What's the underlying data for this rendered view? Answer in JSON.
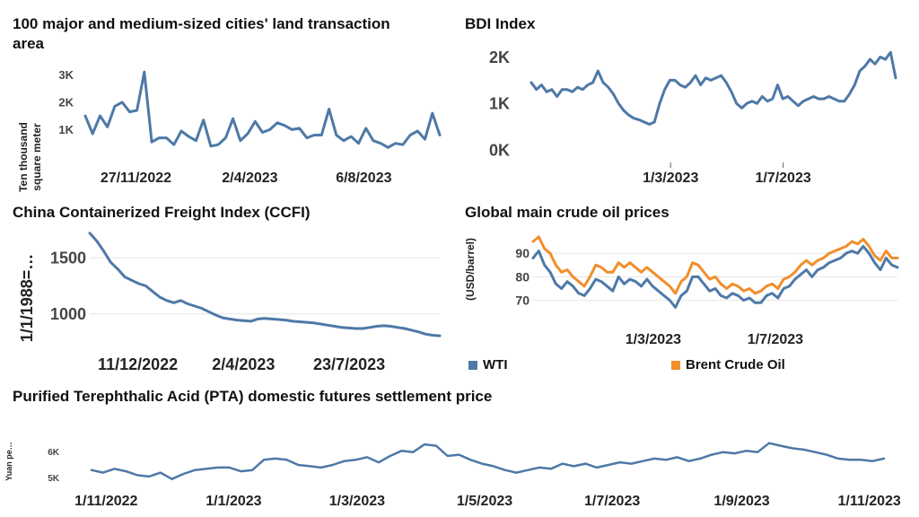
{
  "chart_data": [
    {
      "id": "land",
      "type": "line",
      "title": "100 major and medium-sized cities' land transaction area",
      "ylabel_line1": "Ten thousand",
      "ylabel_line2": "square meter",
      "ylim": [
        0,
        3500
      ],
      "yticks": [
        {
          "v": 1000,
          "label": "1K"
        },
        {
          "v": 2000,
          "label": "2K"
        },
        {
          "v": 3000,
          "label": "3K"
        }
      ],
      "x_start": "2022-10-02",
      "x_end": "2023-10-29",
      "xticks": [
        {
          "date": "2022-11-27",
          "label": "27/11/2022"
        },
        {
          "date": "2023-04-02",
          "label": "2/4/2023"
        },
        {
          "date": "2023-08-06",
          "label": "6/8/2023"
        }
      ],
      "color": "#4e79a7",
      "series": [
        {
          "values": [
            1500,
            850,
            1500,
            1100,
            1850,
            2000,
            1650,
            1700,
            3100,
            550,
            700,
            700,
            450,
            950,
            750,
            600,
            1350,
            400,
            450,
            700,
            1400,
            600,
            850,
            1300,
            900,
            1000,
            1250,
            1150,
            1000,
            1050,
            700,
            800,
            800,
            1750,
            800,
            600,
            750,
            500,
            1050,
            600,
            500,
            350,
            500,
            450,
            800,
            950,
            650,
            1600,
            800
          ]
        }
      ]
    },
    {
      "id": "bdi",
      "type": "line",
      "title": "BDI Index",
      "ylim": [
        0,
        2300
      ],
      "yticks": [
        {
          "v": 0,
          "label": "0K"
        },
        {
          "v": 1000,
          "label": "1K"
        },
        {
          "v": 2000,
          "label": "2K"
        }
      ],
      "x_start": "2022-10-01",
      "x_end": "2023-10-31",
      "xticks": [
        {
          "date": "2023-03-01",
          "label": "1/3/2023"
        },
        {
          "date": "2023-07-01",
          "label": "1/7/2023"
        }
      ],
      "color": "#4e79a7",
      "series": [
        {
          "values": [
            1450,
            1300,
            1400,
            1250,
            1300,
            1150,
            1300,
            1300,
            1250,
            1350,
            1300,
            1400,
            1450,
            1700,
            1450,
            1350,
            1200,
            1000,
            850,
            750,
            680,
            650,
            600,
            550,
            600,
            1000,
            1300,
            1500,
            1500,
            1400,
            1350,
            1450,
            1600,
            1400,
            1550,
            1500,
            1550,
            1600,
            1450,
            1250,
            1000,
            900,
            1000,
            1050,
            1000,
            1150,
            1050,
            1100,
            1400,
            1100,
            1150,
            1050,
            950,
            1050,
            1100,
            1150,
            1100,
            1100,
            1150,
            1100,
            1050,
            1050,
            1200,
            1400,
            1700,
            1800,
            1950,
            1850,
            2000,
            1950,
            2100,
            1550
          ]
        }
      ]
    },
    {
      "id": "ccfi",
      "type": "line",
      "title": "China Containerized Freight Index (CCFI)",
      "ylabel": "1/1/1988=…",
      "ylim": [
        750,
        1750
      ],
      "yticks": [
        {
          "v": 1000,
          "label": "1000"
        },
        {
          "v": 1500,
          "label": "1500"
        }
      ],
      "x_start": "2022-10-21",
      "x_end": "2023-10-27",
      "xticks": [
        {
          "date": "2022-12-11",
          "label": "11/12/2022"
        },
        {
          "date": "2023-04-02",
          "label": "2/4/2023"
        },
        {
          "date": "2023-07-23",
          "label": "23/7/2023"
        }
      ],
      "color": "#4e79a7",
      "series": [
        {
          "values": [
            1720,
            1650,
            1560,
            1460,
            1400,
            1330,
            1300,
            1270,
            1250,
            1200,
            1150,
            1120,
            1100,
            1120,
            1090,
            1070,
            1050,
            1020,
            990,
            965,
            955,
            945,
            940,
            935,
            955,
            960,
            955,
            950,
            945,
            935,
            930,
            925,
            920,
            910,
            900,
            890,
            880,
            875,
            870,
            870,
            880,
            890,
            895,
            890,
            880,
            870,
            855,
            840,
            820,
            810,
            805
          ]
        }
      ]
    },
    {
      "id": "oil",
      "type": "line",
      "title": "Global main crude oil prices",
      "ylabel": "(USD/barrel)",
      "ylim": [
        63,
        100
      ],
      "yticks": [
        {
          "v": 70,
          "label": "70"
        },
        {
          "v": 80,
          "label": "80"
        },
        {
          "v": 90,
          "label": "90"
        }
      ],
      "x_start": "2022-11-01",
      "x_end": "2023-10-31",
      "xticks": [
        {
          "date": "2023-03-01",
          "label": "1/3/2023"
        },
        {
          "date": "2023-07-01",
          "label": "1/7/2023"
        }
      ],
      "legend_position": "bottom",
      "series": [
        {
          "name": "WTI",
          "color": "#4e79a7",
          "values": [
            88,
            91,
            85,
            82,
            77,
            75,
            78,
            76,
            73,
            72,
            75,
            79,
            78,
            76,
            74,
            80,
            77,
            79,
            78,
            76,
            79,
            76,
            74,
            72,
            70,
            67,
            72,
            74,
            80,
            80,
            77,
            74,
            75,
            72,
            71,
            73,
            72,
            70,
            71,
            69,
            69,
            72,
            73,
            71,
            75,
            76,
            79,
            81,
            83,
            80,
            83,
            84,
            86,
            87,
            88,
            90,
            91,
            90,
            93,
            90,
            86,
            83,
            88,
            85,
            84
          ]
        },
        {
          "name": "Brent Crude Oil",
          "color": "#f28e2b",
          "values": [
            95,
            97,
            92,
            90,
            85,
            82,
            83,
            80,
            78,
            76,
            80,
            85,
            84,
            82,
            82,
            86,
            84,
            86,
            84,
            82,
            84,
            82,
            80,
            78,
            76,
            73,
            78,
            80,
            86,
            85,
            82,
            79,
            80,
            77,
            75,
            77,
            76,
            74,
            75,
            73,
            74,
            76,
            77,
            75,
            79,
            80,
            82,
            85,
            87,
            85,
            87,
            88,
            90,
            91,
            92,
            93,
            95,
            94,
            96,
            93,
            89,
            87,
            91,
            88,
            88
          ]
        }
      ]
    },
    {
      "id": "pta",
      "type": "line",
      "title": "Purified Terephthalic Acid (PTA) domestic futures settlement price",
      "ylabel": "Yuan pe…",
      "ylim": [
        4800,
        6900
      ],
      "yticks": [
        {
          "v": 5000,
          "label": "5K"
        },
        {
          "v": 6000,
          "label": "6K"
        }
      ],
      "x_start": "2022-10-25",
      "x_end": "2023-11-08",
      "xticks": [
        {
          "date": "2022-11-01",
          "label": "1/11/2022"
        },
        {
          "date": "2023-01-01",
          "label": "1/1/2023"
        },
        {
          "date": "2023-03-01",
          "label": "1/3/2023"
        },
        {
          "date": "2023-05-01",
          "label": "1/5/2023"
        },
        {
          "date": "2023-07-01",
          "label": "1/7/2023"
        },
        {
          "date": "2023-09-01",
          "label": "1/9/2023"
        },
        {
          "date": "2023-11-01",
          "label": "1/11/2023"
        }
      ],
      "color": "#4e79a7",
      "series": [
        {
          "values": [
            5300,
            5200,
            5350,
            5250,
            5100,
            5050,
            5200,
            4950,
            5150,
            5300,
            5350,
            5400,
            5400,
            5250,
            5300,
            5700,
            5750,
            5700,
            5500,
            5450,
            5400,
            5500,
            5650,
            5700,
            5800,
            5600,
            5850,
            6050,
            6000,
            6300,
            6250,
            5850,
            5900,
            5700,
            5550,
            5450,
            5300,
            5200,
            5300,
            5400,
            5350,
            5550,
            5450,
            5550,
            5400,
            5500,
            5600,
            5550,
            5650,
            5750,
            5700,
            5800,
            5650,
            5750,
            5900,
            6000,
            5950,
            6050,
            6000,
            6350,
            6250,
            6150,
            6100,
            6000,
            5900,
            5750,
            5700,
            5700,
            5650,
            5750
          ]
        }
      ]
    }
  ]
}
